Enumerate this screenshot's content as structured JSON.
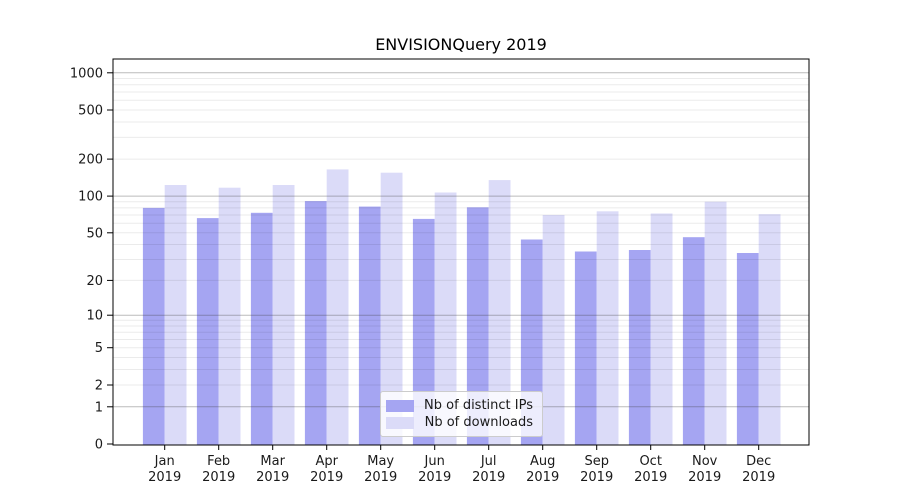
{
  "chart_data": {
    "type": "bar",
    "title": "ENVISIONQuery 2019",
    "categories": [
      "Jan 2019",
      "Feb 2019",
      "Mar 2019",
      "Apr 2019",
      "May 2019",
      "Jun 2019",
      "Jul 2019",
      "Aug 2019",
      "Sep 2019",
      "Oct 2019",
      "Nov 2019",
      "Dec 2019"
    ],
    "series": [
      {
        "name": "Nb of distinct IPs",
        "color": "#a5a5f2",
        "values": [
          80,
          66,
          73,
          91,
          82,
          65,
          81,
          44,
          35,
          36,
          46,
          34
        ]
      },
      {
        "name": "Nb of downloads",
        "color": "#dbdbf8",
        "values": [
          123,
          117,
          123,
          165,
          155,
          107,
          135,
          70,
          75,
          72,
          90,
          71
        ]
      }
    ],
    "yscale": "log1p",
    "y_ticks": [
      0,
      1,
      2,
      5,
      10,
      20,
      50,
      100,
      200,
      500,
      1000
    ],
    "ylim": [
      0,
      1295
    ],
    "xlabel": "",
    "ylabel": "",
    "grid": "both",
    "legend_position": "lower center",
    "colors": {
      "axis_border": "#000000",
      "tick_text": "#1a1a1a",
      "major_grid": "rgba(60,60,60,0.35)",
      "minor_grid": "rgba(0,0,0,0.08)",
      "background": "#ffffff"
    }
  }
}
